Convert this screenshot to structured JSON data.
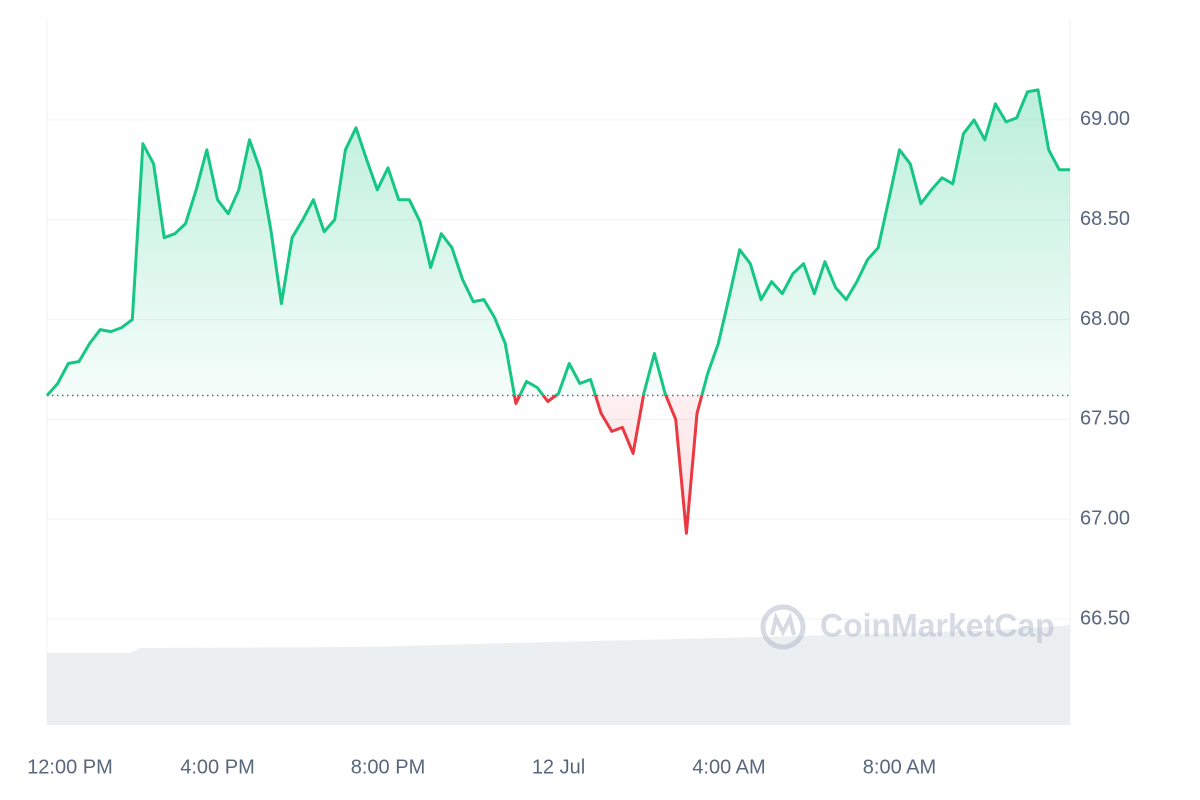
{
  "chart_data": {
    "type": "line",
    "x": [
      0,
      0.25,
      0.5,
      0.75,
      1,
      1.25,
      1.5,
      1.75,
      2,
      2.25,
      2.5,
      2.75,
      3,
      3.25,
      3.5,
      3.75,
      4,
      4.25,
      4.5,
      4.75,
      5,
      5.25,
      5.5,
      5.75,
      6,
      6.25,
      6.5,
      6.75,
      7,
      7.25,
      7.5,
      7.75,
      8,
      8.25,
      8.5,
      8.75,
      9,
      9.25,
      9.5,
      9.75,
      10,
      10.25,
      10.5,
      10.75,
      11,
      11.25,
      11.5,
      11.75,
      12,
      12.25,
      12.5,
      12.75,
      13,
      13.25,
      13.5,
      13.75,
      14,
      14.25,
      14.5,
      14.75,
      15,
      15.25,
      15.5,
      15.75,
      16,
      16.25,
      16.5,
      16.75,
      17,
      17.25,
      17.5,
      17.75,
      18,
      18.25,
      18.5,
      18.75,
      19,
      19.25,
      19.5,
      19.75,
      20,
      20.25,
      20.5,
      20.75,
      21,
      21.25,
      21.5,
      21.75,
      22,
      22.25,
      22.5,
      22.75,
      23,
      23.25,
      23.5,
      23.75,
      24
    ],
    "values": [
      67.62,
      67.68,
      67.78,
      67.79,
      67.88,
      67.95,
      67.94,
      67.96,
      68.0,
      68.88,
      68.78,
      68.41,
      68.43,
      68.48,
      68.65,
      68.85,
      68.6,
      68.53,
      68.65,
      68.9,
      68.75,
      68.45,
      68.08,
      68.41,
      68.5,
      68.6,
      68.44,
      68.5,
      68.85,
      68.96,
      68.8,
      68.65,
      68.76,
      68.6,
      68.6,
      68.49,
      68.26,
      68.43,
      68.36,
      68.2,
      68.09,
      68.1,
      68.01,
      67.88,
      67.58,
      67.69,
      67.66,
      67.59,
      67.63,
      67.78,
      67.68,
      67.7,
      67.53,
      67.44,
      67.46,
      67.33,
      67.63,
      67.83,
      67.63,
      67.5,
      66.93,
      67.53,
      67.73,
      67.88,
      68.11,
      68.35,
      68.28,
      68.1,
      68.19,
      68.13,
      68.23,
      68.28,
      68.13,
      68.29,
      68.16,
      68.1,
      68.19,
      68.3,
      68.36,
      68.6,
      68.85,
      68.78,
      68.58,
      68.65,
      68.71,
      68.68,
      68.93,
      69.0,
      68.9,
      69.08,
      68.99,
      69.01,
      69.14,
      69.15,
      68.85,
      68.75,
      68.75
    ],
    "baseline": 67.62,
    "up_color": "#16c784",
    "down_color": "#ea3943",
    "xlim": [
      0,
      24
    ],
    "xticks": [
      {
        "value": 0,
        "label": "12:00 PM"
      },
      {
        "value": 4,
        "label": "4:00 PM"
      },
      {
        "value": 8,
        "label": "8:00 PM"
      },
      {
        "value": 12,
        "label": "12 Jul"
      },
      {
        "value": 16,
        "label": "4:00 AM"
      },
      {
        "value": 20,
        "label": "8:00 AM"
      }
    ],
    "ylim": [
      65.97,
      69.51
    ],
    "yticks": [
      {
        "value": 66.5,
        "label": "66.50"
      },
      {
        "value": 67,
        "label": "67.00"
      },
      {
        "value": 67.5,
        "label": "67.50"
      },
      {
        "value": 68,
        "label": "68.00"
      },
      {
        "value": 68.5,
        "label": "68.50"
      },
      {
        "value": 69,
        "label": "69.00"
      }
    ],
    "grid": true,
    "watermark": "CoinMarketCap"
  }
}
